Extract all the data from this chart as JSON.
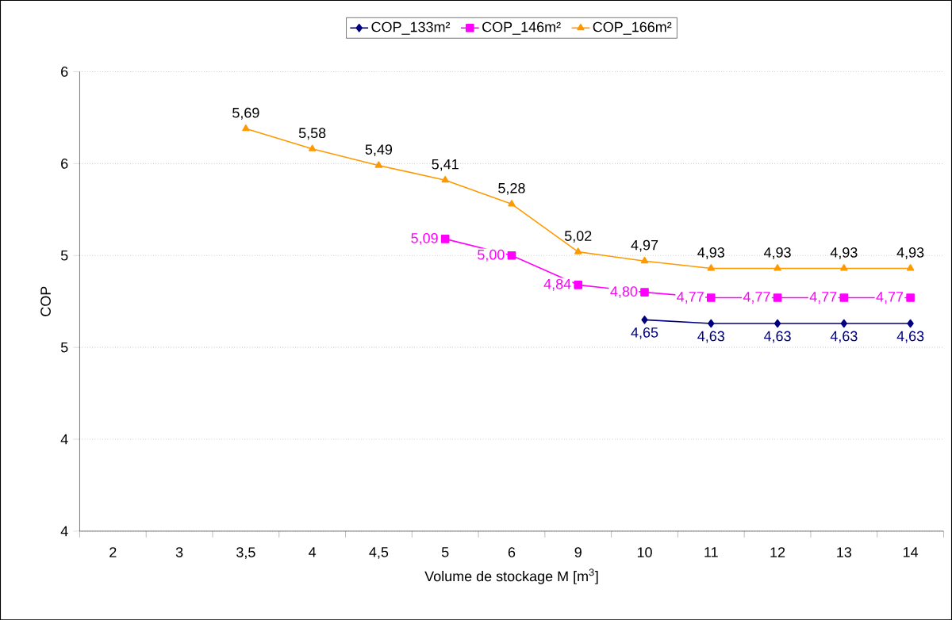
{
  "chart_data": {
    "type": "line",
    "xlabel": "Volume de stockage M [m$^{3}$]",
    "ylabel": "COP",
    "categories": [
      "2",
      "3",
      "3,5",
      "4",
      "4,5",
      "5",
      "6",
      "9",
      "10",
      "11",
      "12",
      "13",
      "14"
    ],
    "ylim": [
      3.5,
      6.0
    ],
    "yticks": [
      {
        "value": 3.5,
        "label": "4"
      },
      {
        "value": 4.0,
        "label": "4"
      },
      {
        "value": 4.5,
        "label": "5"
      },
      {
        "value": 5.0,
        "label": "5"
      },
      {
        "value": 5.5,
        "label": "6"
      },
      {
        "value": 6.0,
        "label": "6"
      }
    ],
    "grid": "y",
    "legend": "top",
    "line_style": "solid",
    "series": [
      {
        "name": "COP_133m²",
        "color": "#000080",
        "marker": "diamond",
        "values": [
          null,
          null,
          null,
          null,
          null,
          null,
          null,
          null,
          4.65,
          4.63,
          4.63,
          4.63,
          4.63
        ],
        "value_labels": [
          null,
          null,
          null,
          null,
          null,
          null,
          null,
          null,
          "4,65",
          "4,63",
          "4,63",
          "4,63",
          "4,63"
        ]
      },
      {
        "name": "COP_146m²",
        "color": "#ff00ff",
        "marker": "square",
        "values": [
          null,
          null,
          null,
          null,
          null,
          5.09,
          5.0,
          4.84,
          4.8,
          4.77,
          4.77,
          4.77,
          4.77
        ],
        "value_labels": [
          null,
          null,
          null,
          null,
          null,
          "5,09",
          "5,00",
          "4,84",
          "4,80",
          "4,77",
          "4,77",
          "4,77",
          "4,77"
        ]
      },
      {
        "name": "COP_166m²",
        "color": "#ff9900",
        "marker": "triangle",
        "values": [
          null,
          null,
          5.69,
          5.58,
          5.49,
          5.41,
          5.28,
          5.02,
          4.97,
          4.93,
          4.93,
          4.93,
          4.93
        ],
        "value_labels": [
          null,
          null,
          "5,69",
          "5,58",
          "5,49",
          "5,41",
          "5,28",
          "5,02",
          "4,97",
          "4,93",
          "4,93",
          "4,93",
          "4,93"
        ]
      }
    ]
  }
}
